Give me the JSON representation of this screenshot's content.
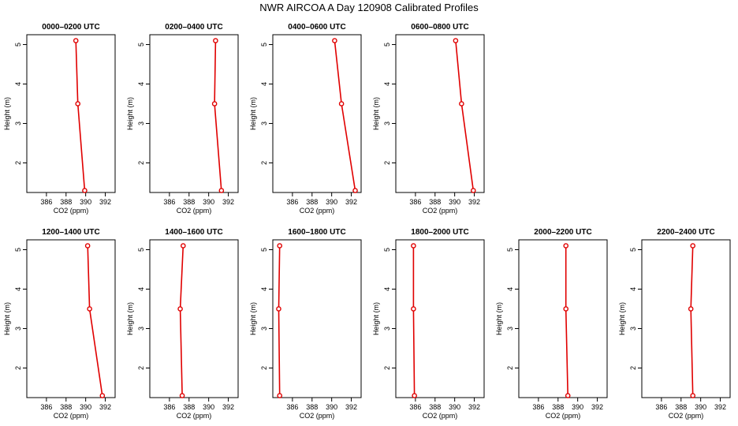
{
  "title": "NWR AIRCOA A  Day 120908  Calibrated Profiles",
  "chart_data": {
    "type": "line",
    "xlabel": "CO2 (ppm)",
    "ylabel": "Height (m)",
    "xlim": [
      384,
      393
    ],
    "ylim": [
      1.25,
      5.25
    ],
    "xticks": [
      386,
      388,
      390,
      392
    ],
    "yticks": [
      2,
      3,
      4,
      5
    ],
    "line_color": "#e00000",
    "panels": [
      {
        "title": "0000–0200 UTC",
        "points": [
          {
            "height": 5.1,
            "co2": 389.0
          },
          {
            "height": 3.5,
            "co2": 389.2
          },
          {
            "height": 1.3,
            "co2": 389.9
          }
        ]
      },
      {
        "title": "0200–0400 UTC",
        "points": [
          {
            "height": 5.1,
            "co2": 390.7
          },
          {
            "height": 3.5,
            "co2": 390.6
          },
          {
            "height": 1.3,
            "co2": 391.3
          }
        ]
      },
      {
        "title": "0400–0600 UTC",
        "points": [
          {
            "height": 5.1,
            "co2": 390.3
          },
          {
            "height": 3.5,
            "co2": 391.0
          },
          {
            "height": 1.3,
            "co2": 392.4
          }
        ]
      },
      {
        "title": "0600–0800 UTC",
        "points": [
          {
            "height": 5.1,
            "co2": 390.1
          },
          {
            "height": 3.5,
            "co2": 390.7
          },
          {
            "height": 1.3,
            "co2": 391.9
          }
        ]
      },
      {
        "title": "1200–1400 UTC",
        "points": [
          {
            "height": 5.1,
            "co2": 390.2
          },
          {
            "height": 3.5,
            "co2": 390.4
          },
          {
            "height": 1.3,
            "co2": 391.7
          }
        ]
      },
      {
        "title": "1400–1600 UTC",
        "points": [
          {
            "height": 5.1,
            "co2": 387.4
          },
          {
            "height": 3.5,
            "co2": 387.1
          },
          {
            "height": 1.3,
            "co2": 387.3
          }
        ]
      },
      {
        "title": "1600–1800 UTC",
        "points": [
          {
            "height": 5.1,
            "co2": 384.7
          },
          {
            "height": 3.5,
            "co2": 384.6
          },
          {
            "height": 1.3,
            "co2": 384.7
          }
        ]
      },
      {
        "title": "1800–2000 UTC",
        "points": [
          {
            "height": 5.1,
            "co2": 385.8
          },
          {
            "height": 3.5,
            "co2": 385.8
          },
          {
            "height": 1.3,
            "co2": 385.9
          }
        ]
      },
      {
        "title": "2000–2200 UTC",
        "points": [
          {
            "height": 5.1,
            "co2": 388.8
          },
          {
            "height": 3.5,
            "co2": 388.8
          },
          {
            "height": 1.3,
            "co2": 389.0
          }
        ]
      },
      {
        "title": "2200–2400 UTC",
        "points": [
          {
            "height": 5.1,
            "co2": 389.2
          },
          {
            "height": 3.5,
            "co2": 389.0
          },
          {
            "height": 1.3,
            "co2": 389.2
          }
        ]
      }
    ]
  }
}
